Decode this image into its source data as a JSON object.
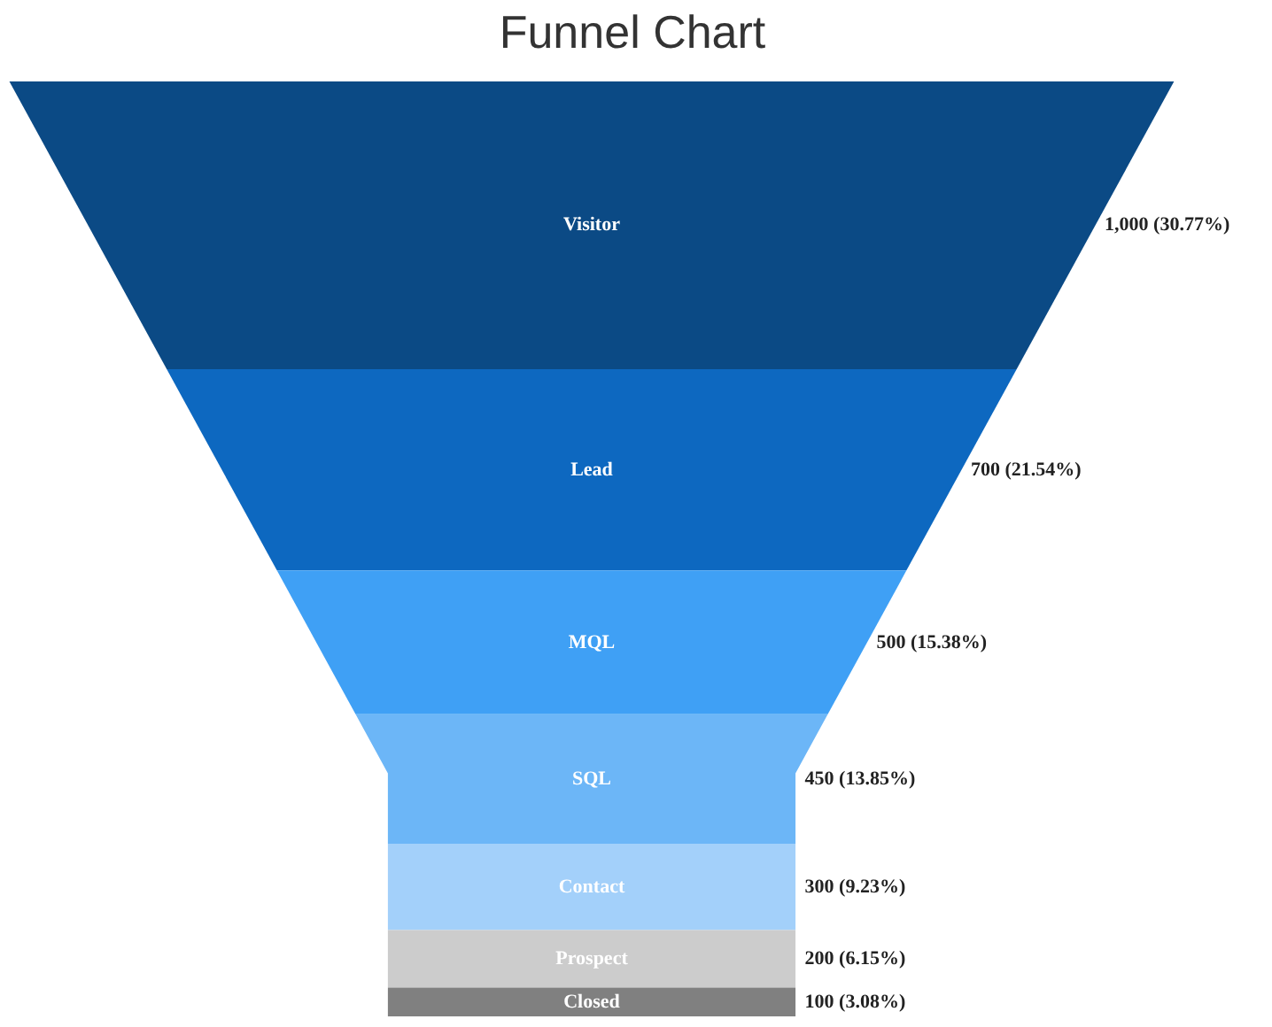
{
  "chart_data": {
    "type": "other",
    "title": "Funnel Chart",
    "categories": [
      "Visitor",
      "Lead",
      "MQL",
      "SQL",
      "Contact",
      "Prospect",
      "Closed"
    ],
    "values": [
      1000,
      700,
      500,
      450,
      300,
      200,
      100
    ],
    "colors": [
      "#0b4a85",
      "#0d68c0",
      "#3fa0f5",
      "#6cb6f7",
      "#a3d0fa",
      "#cccccc",
      "#808080"
    ],
    "value_labels": [
      "1,000 (30.77%)",
      "700 (21.54%)",
      "500 (15.38%)",
      "450 (13.85%)",
      "300 (9.23%)",
      "200 (6.15%)",
      "100 (3.08%)"
    ]
  }
}
